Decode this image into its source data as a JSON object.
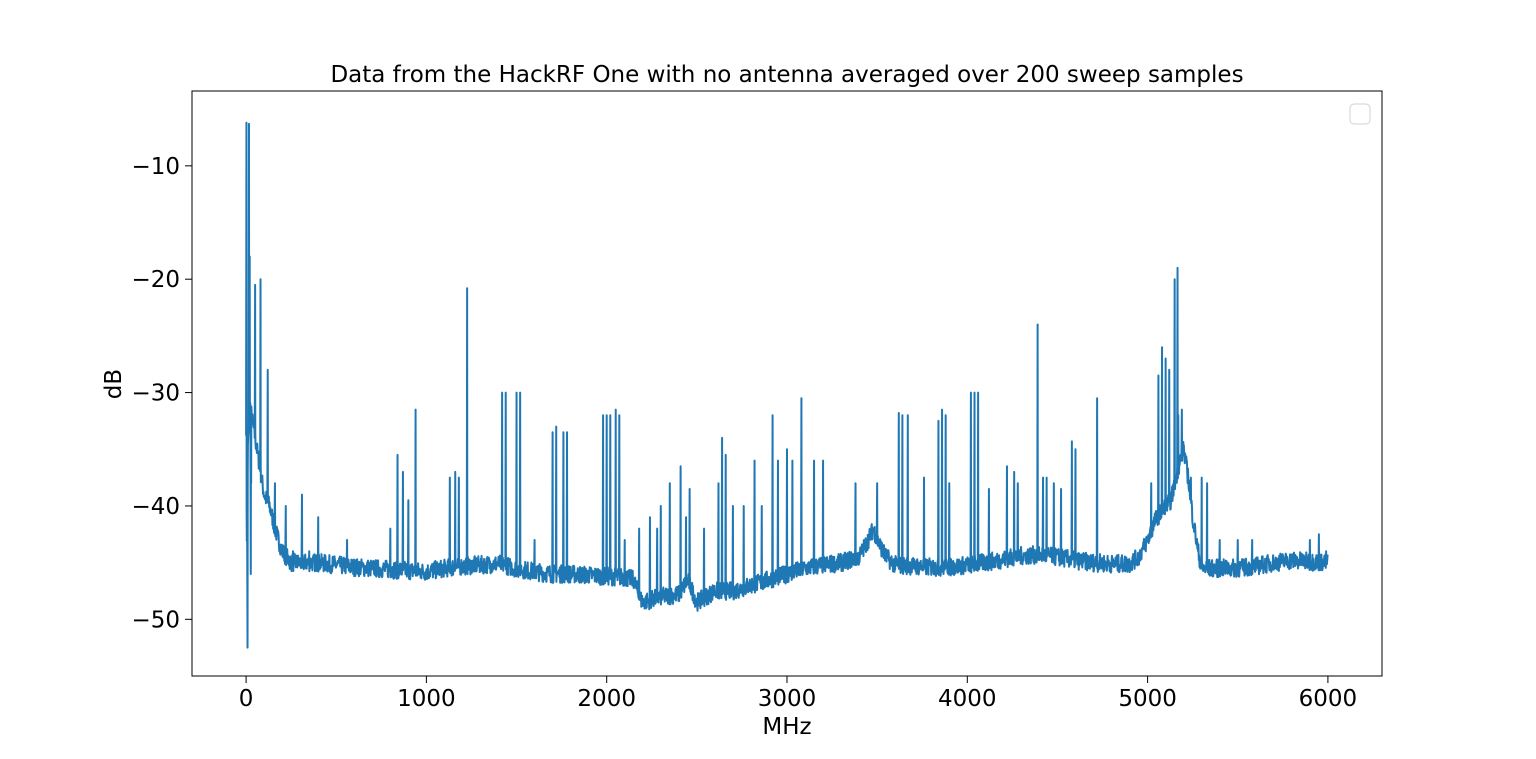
{
  "chart_data": {
    "type": "line",
    "title": "Data from the HackRF One with no antenna averaged over 200 sweep samples",
    "xlabel": "MHz",
    "ylabel": "dB",
    "xlim": [
      -300,
      6300
    ],
    "ylim": [
      -55,
      -3.4
    ],
    "xticks": [
      0,
      1000,
      2000,
      3000,
      4000,
      5000,
      6000
    ],
    "xtick_labels": [
      "0",
      "1000",
      "2000",
      "3000",
      "4000",
      "5000",
      "6000"
    ],
    "yticks": [
      -50,
      -40,
      -30,
      -20,
      -10
    ],
    "ytick_labels": [
      "−50",
      "−40",
      "−30",
      "−20",
      "−10"
    ],
    "grid": false,
    "legend": "top-right (empty)",
    "series_color": "#1f77b4",
    "baseline": {
      "x": [
        0,
        5,
        10,
        20,
        30,
        40,
        60,
        80,
        100,
        130,
        160,
        200,
        250,
        300,
        400,
        500,
        600,
        700,
        800,
        900,
        1000,
        1100,
        1200,
        1300,
        1400,
        1500,
        1600,
        1700,
        1800,
        1900,
        2000,
        2100,
        2150,
        2180,
        2200,
        2300,
        2400,
        2450,
        2500,
        2550,
        2600,
        2700,
        2800,
        2900,
        3000,
        3100,
        3200,
        3300,
        3400,
        3450,
        3480,
        3500,
        3550,
        3600,
        3700,
        3800,
        3900,
        4000,
        4100,
        4200,
        4300,
        4400,
        4500,
        4600,
        4700,
        4800,
        4900,
        4950,
        5000,
        5050,
        5080,
        5100,
        5130,
        5150,
        5180,
        5200,
        5230,
        5250,
        5280,
        5300,
        5400,
        5500,
        5600,
        5700,
        5800,
        5900,
        6000
      ],
      "y": [
        -33,
        -45,
        -35,
        -31,
        -32,
        -33,
        -35,
        -37,
        -39,
        -40,
        -42,
        -44,
        -45,
        -45,
        -45,
        -45.2,
        -45.4,
        -45.5,
        -45.6,
        -45.7,
        -45.8,
        -45.5,
        -45.3,
        -45.2,
        -45.1,
        -45.5,
        -45.8,
        -46,
        -46,
        -46.1,
        -46.2,
        -46.3,
        -46.5,
        -48,
        -48.5,
        -48,
        -47.8,
        -46.5,
        -48.5,
        -48,
        -47.5,
        -47.5,
        -47,
        -46.5,
        -46,
        -45.5,
        -45.2,
        -45,
        -44.5,
        -43,
        -42,
        -43,
        -44.5,
        -45.2,
        -45.3,
        -45.4,
        -45.4,
        -45.2,
        -45,
        -44.7,
        -44.4,
        -44.3,
        -44.5,
        -44.8,
        -45,
        -45.1,
        -45.1,
        -44.5,
        -43,
        -41,
        -40.5,
        -40,
        -39.5,
        -38,
        -36,
        -35,
        -38,
        -41,
        -44,
        -45.5,
        -45.5,
        -45.5,
        -45.3,
        -45,
        -44.8,
        -44.9,
        -45
      ]
    },
    "spikes": {
      "x": [
        2,
        8,
        15,
        20,
        25,
        28,
        50,
        80,
        120,
        160,
        220,
        260,
        310,
        350,
        400,
        560,
        800,
        840,
        870,
        900,
        940,
        1130,
        1160,
        1180,
        1225,
        1420,
        1440,
        1500,
        1520,
        1600,
        1700,
        1720,
        1760,
        1780,
        1980,
        2000,
        2020,
        2050,
        2070,
        2100,
        2180,
        2240,
        2280,
        2300,
        2350,
        2410,
        2440,
        2460,
        2540,
        2620,
        2640,
        2660,
        2700,
        2760,
        2820,
        2860,
        2920,
        2950,
        3000,
        3030,
        3080,
        3150,
        3200,
        3380,
        3500,
        3620,
        3640,
        3670,
        3760,
        3840,
        3860,
        3880,
        3900,
        4020,
        4040,
        4060,
        4120,
        4220,
        4260,
        4280,
        4390,
        4420,
        4440,
        4480,
        4520,
        4580,
        4600,
        4720,
        5020,
        5060,
        5080,
        5100,
        5120,
        5150,
        5165,
        5170,
        5190,
        5200,
        5240,
        5300,
        5330,
        5400,
        5500,
        5580,
        5900,
        5950,
        5990
      ],
      "y": [
        -6.2,
        -52.5,
        -6.3,
        -18,
        -46,
        -38,
        -20.5,
        -20,
        -28,
        -38,
        -40,
        -44,
        -39,
        -44,
        -41,
        -43,
        -42,
        -35.5,
        -37,
        -39.5,
        -31.5,
        -37.5,
        -37,
        -37.5,
        -20.8,
        -30,
        -30,
        -30,
        -30,
        -43,
        -33.5,
        -33,
        -33.5,
        -33.5,
        -32,
        -32,
        -32,
        -31.5,
        -32,
        -43,
        -42,
        -41,
        -42,
        -40,
        -38,
        -36.5,
        -41,
        -38.5,
        -42,
        -38,
        -34,
        -35.5,
        -40,
        -40,
        -36,
        -40,
        -32,
        -36,
        -35,
        -36,
        -30.5,
        -36,
        -36,
        -38,
        -38,
        -31.8,
        -32,
        -32,
        -37.5,
        -32.5,
        -31.5,
        -32,
        -38,
        -30,
        -30,
        -30,
        -38.5,
        -36.5,
        -37,
        -38,
        -24,
        -37.5,
        -37.5,
        -38,
        -38.5,
        -34.3,
        -35,
        -30.5,
        -38,
        -28.5,
        -26,
        -27,
        -28,
        -20,
        -19,
        -32,
        -31.5,
        -35,
        -37.5,
        -37.5,
        -38,
        -43,
        -43,
        -43,
        -43,
        -42.5,
        -44
      ]
    }
  }
}
